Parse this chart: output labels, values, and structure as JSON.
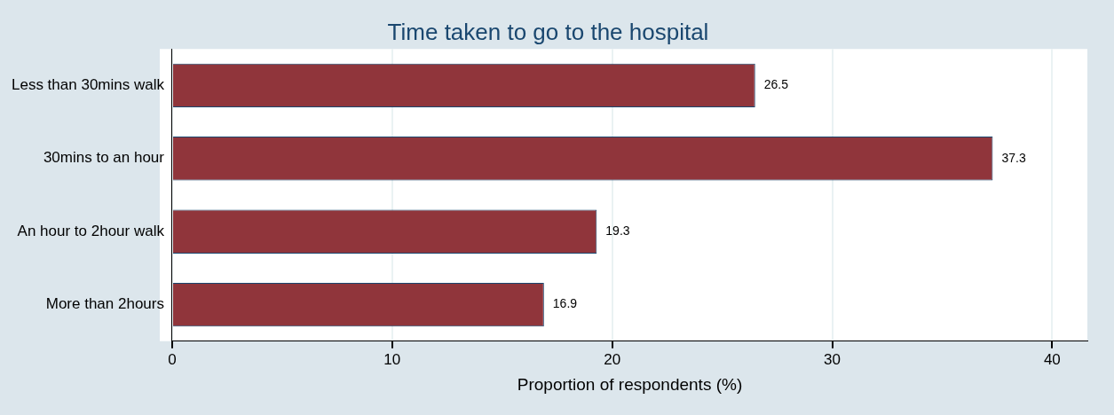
{
  "chart_data": {
    "type": "bar",
    "orientation": "horizontal",
    "title": "Time taken to go to the hospital",
    "xlabel": "Proportion of respondents (%)",
    "categories": [
      "Less than 30mins walk",
      "30mins to an hour",
      "An hour to 2hour walk",
      "More than 2hours"
    ],
    "values": [
      26.5,
      37.3,
      19.3,
      16.9
    ],
    "color": "#90353b",
    "xlim": [
      0,
      41.6
    ],
    "xticks": [
      0,
      10,
      20,
      30,
      40
    ],
    "grid": "x",
    "legend": false,
    "data_labels": true
  }
}
